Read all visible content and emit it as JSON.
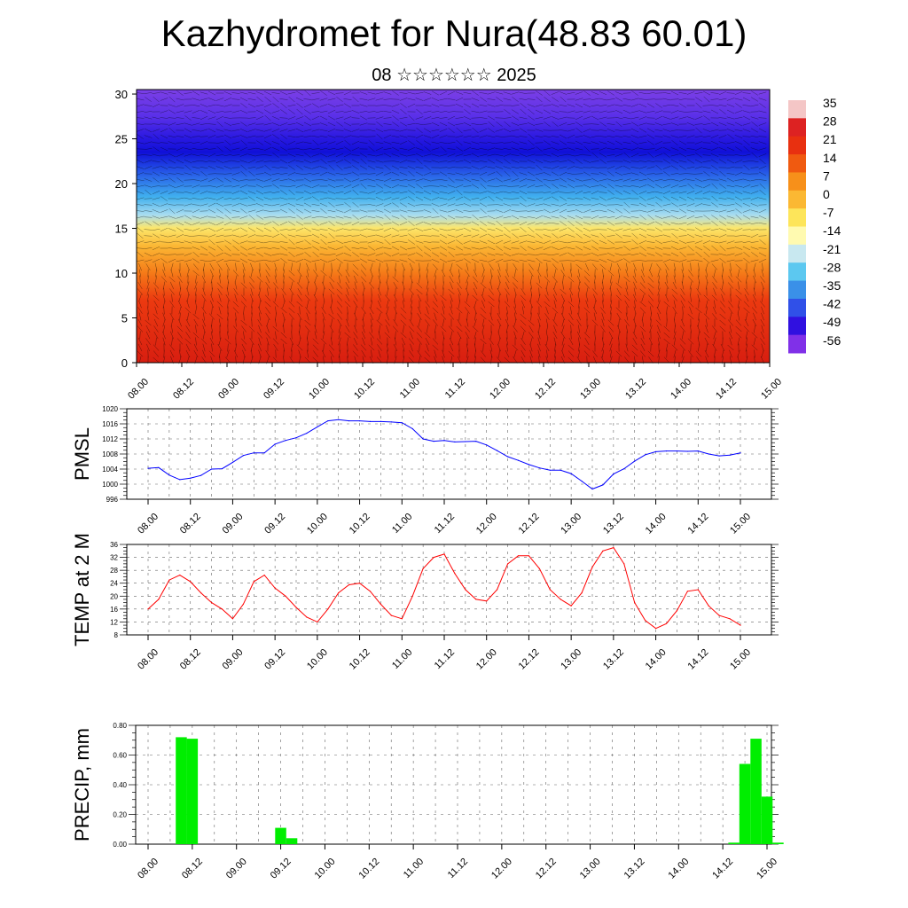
{
  "title": "Kazhydromet for Nura(48.83 60.01)",
  "subtitle": "08 ☆☆☆☆☆☆ 2025",
  "chart_data": [
    {
      "type": "heatmap",
      "name": "cross-section",
      "y_ticks": [
        "0",
        "5",
        "10",
        "15",
        "20",
        "25",
        "30"
      ],
      "ylim": [
        0,
        30.5
      ],
      "x_ticks": [
        "08.00",
        "08.12",
        "09.00",
        "09.12",
        "10.00",
        "10.12",
        "11.00",
        "11.12",
        "12.00",
        "12.12",
        "13.00",
        "13.12",
        "14.00",
        "14.12",
        "15.00"
      ],
      "colorbar_labels": [
        "35",
        "28",
        "21",
        "14",
        "7",
        "0",
        "-7",
        "-14",
        "-21",
        "-28",
        "-35",
        "-42",
        "-49",
        "-56"
      ],
      "colorbar_colors": [
        "#f4c6c6",
        "#dd2222",
        "#e83010",
        "#f05a10",
        "#f7901a",
        "#fbb833",
        "#fde55a",
        "#fffab0",
        "#c8e8f0",
        "#5cc8f0",
        "#3a90e8",
        "#3050e8",
        "#3010e0",
        "#8030e8"
      ],
      "levels": [
        {
          "height": 0,
          "color": "#d81e10"
        },
        {
          "height": 7,
          "color": "#ec3a10"
        },
        {
          "height": 10,
          "color": "#f57a18"
        },
        {
          "height": 13,
          "color": "#fbb633"
        },
        {
          "height": 15,
          "color": "#fde66a"
        },
        {
          "height": 16.5,
          "color": "#a8dcf0"
        },
        {
          "height": 18.5,
          "color": "#40b0ee"
        },
        {
          "height": 21,
          "color": "#2860e8"
        },
        {
          "height": 23.5,
          "color": "#1010d8"
        },
        {
          "height": 25,
          "color": "#2818e0"
        },
        {
          "height": 27.5,
          "color": "#5a30e8"
        },
        {
          "height": 30.5,
          "color": "#7b3fe6"
        }
      ]
    },
    {
      "type": "line",
      "ylabel": "PMSL",
      "ylim": [
        996,
        1020
      ],
      "y_ticks": [
        "996",
        "1000",
        "1004",
        "1008",
        "1012",
        "1016",
        "1020"
      ],
      "x_ticks": [
        "08.00",
        "08.12",
        "09.00",
        "09.12",
        "10.00",
        "10.12",
        "11.00",
        "11.12",
        "12.00",
        "12.12",
        "13.00",
        "13.12",
        "14.00",
        "14.12",
        "15.00"
      ],
      "color": "#0000ff",
      "x": [
        0,
        3,
        6,
        9,
        12,
        15,
        18,
        21,
        24,
        27,
        30,
        33,
        36,
        39,
        42,
        45,
        48,
        51,
        54,
        57,
        60,
        63,
        66,
        69,
        72,
        75,
        78,
        81,
        84,
        87,
        90,
        93,
        96,
        99,
        102,
        105,
        108,
        111,
        114,
        117,
        120,
        123,
        126,
        129,
        132,
        135,
        138,
        141,
        144,
        147,
        150,
        153,
        156,
        159,
        162,
        165,
        168
      ],
      "values": [
        1004.2,
        1004.4,
        1002.4,
        1001.2,
        1001.6,
        1002.3,
        1004.0,
        1004.1,
        1005.8,
        1007.6,
        1008.3,
        1008.3,
        1010.6,
        1011.6,
        1012.3,
        1013.5,
        1015.2,
        1016.8,
        1017.1,
        1016.8,
        1016.8,
        1016.6,
        1016.6,
        1016.5,
        1016.3,
        1014.7,
        1012.0,
        1011.4,
        1011.6,
        1011.2,
        1011.3,
        1011.4,
        1010.4,
        1008.9,
        1007.3,
        1006.3,
        1005.2,
        1004.3,
        1003.7,
        1003.7,
        1002.8,
        1000.8,
        998.7,
        999.8,
        1002.7,
        1004.1,
        1006.1,
        1007.8,
        1008.6,
        1008.8,
        1008.8,
        1008.7,
        1008.8,
        1008.0,
        1007.5,
        1007.7,
        1008.3
      ]
    },
    {
      "type": "line",
      "ylabel": "TEMP at 2 M",
      "ylim": [
        8,
        36
      ],
      "y_ticks": [
        "8",
        "12",
        "16",
        "20",
        "24",
        "28",
        "32",
        "36"
      ],
      "x_ticks": [
        "08.00",
        "08.12",
        "09.00",
        "09.12",
        "10.00",
        "10.12",
        "11.00",
        "11.12",
        "12.00",
        "12.12",
        "13.00",
        "13.12",
        "14.00",
        "14.12",
        "15.00"
      ],
      "color": "#ff0000",
      "x": [
        0,
        3,
        6,
        9,
        12,
        15,
        18,
        21,
        24,
        27,
        30,
        33,
        36,
        39,
        42,
        45,
        48,
        51,
        54,
        57,
        60,
        63,
        66,
        69,
        72,
        75,
        78,
        81,
        84,
        87,
        90,
        93,
        96,
        99,
        102,
        105,
        108,
        111,
        114,
        117,
        120,
        123,
        126,
        129,
        132,
        135,
        138,
        141,
        144,
        147,
        150,
        153,
        156,
        159,
        162,
        165,
        168
      ],
      "values": [
        16.0,
        19.0,
        25.0,
        26.5,
        24.5,
        21.0,
        18.0,
        16.0,
        13.0,
        17.5,
        24.5,
        26.5,
        22.5,
        20.0,
        16.5,
        13.5,
        12.0,
        16.0,
        21.0,
        23.5,
        24.0,
        21.5,
        17.5,
        14.0,
        13.0,
        20.0,
        28.5,
        32.0,
        33.0,
        27.0,
        22.0,
        19.0,
        18.5,
        22.0,
        30.0,
        32.5,
        32.5,
        28.5,
        22.0,
        19.0,
        17.0,
        21.0,
        29.0,
        34.0,
        35.0,
        30.0,
        18.0,
        12.5,
        10.0,
        11.5,
        15.5,
        21.5,
        22.0,
        17.0,
        14.0,
        13.0,
        11.0
      ]
    },
    {
      "type": "bar",
      "ylabel": "PRECIP, mm",
      "ylim": [
        0,
        0.8
      ],
      "y_ticks": [
        "0.00",
        "0.20",
        "0.40",
        "0.60",
        "0.80"
      ],
      "x_ticks": [
        "08.00",
        "08.12",
        "09.00",
        "09.12",
        "10.00",
        "10.12",
        "11.00",
        "11.12",
        "12.00",
        "12.12",
        "13.00",
        "13.12",
        "14.00",
        "14.12",
        "15.00"
      ],
      "color": "#00ee00",
      "x": [
        9,
        12,
        36,
        39,
        159,
        162,
        165,
        168,
        171
      ],
      "values": [
        0.72,
        0.71,
        0.11,
        0.04,
        0.01,
        0.54,
        0.71,
        0.32,
        0.01
      ]
    }
  ]
}
